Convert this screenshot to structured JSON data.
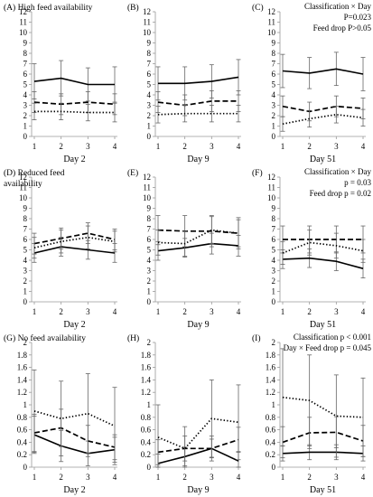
{
  "panels": [
    {
      "label": "(A) High feed availability",
      "xlabel": "Day 2",
      "notes": [],
      "chart_data": {
        "type": "line",
        "x": [
          1,
          2,
          3,
          4
        ],
        "ylim": [
          0,
          12
        ],
        "yticks": [
          0,
          1,
          2,
          3,
          4,
          5,
          6,
          7,
          8,
          9,
          10,
          11,
          12
        ],
        "series": [
          {
            "style": "solid",
            "values": [
              5.3,
              5.6,
              5.0,
              5.0
            ],
            "errors": [
              1.7,
              1.7,
              1.6,
              1.7
            ]
          },
          {
            "style": "dashed",
            "values": [
              3.3,
              3.1,
              3.3,
              3.1
            ],
            "errors": [
              1.0,
              1.0,
              1.0,
              1.0
            ]
          },
          {
            "style": "dotted",
            "values": [
              2.4,
              2.4,
              2.3,
              2.3
            ],
            "errors": [
              0.8,
              0.8,
              0.8,
              0.9
            ]
          }
        ]
      }
    },
    {
      "label": "(B)",
      "xlabel": "Day 9",
      "notes": [],
      "chart_data": {
        "type": "line",
        "x": [
          1,
          2,
          3,
          4
        ],
        "ylim": [
          0,
          12
        ],
        "yticks": [
          0,
          1,
          2,
          3,
          4,
          5,
          6,
          7,
          8,
          9,
          10,
          11,
          12
        ],
        "series": [
          {
            "style": "solid",
            "values": [
              5.1,
              5.1,
              5.3,
              5.7
            ],
            "errors": [
              1.6,
              1.6,
              1.6,
              1.7
            ]
          },
          {
            "style": "dashed",
            "values": [
              3.3,
              3.0,
              3.4,
              3.4
            ],
            "errors": [
              1.0,
              1.0,
              1.0,
              1.0
            ]
          },
          {
            "style": "dotted",
            "values": [
              2.1,
              2.2,
              2.2,
              2.2
            ],
            "errors": [
              0.8,
              0.8,
              0.8,
              0.8
            ]
          }
        ]
      }
    },
    {
      "label": "(C)",
      "xlabel": "Day 51",
      "notes": [
        "Classification × Day",
        "P=0.023",
        "Feed drop P>0.05"
      ],
      "chart_data": {
        "type": "line",
        "x": [
          1,
          2,
          3,
          4
        ],
        "ylim": [
          0,
          12
        ],
        "yticks": [
          0,
          1,
          2,
          3,
          4,
          5,
          6,
          7,
          8,
          9,
          10,
          11,
          12
        ],
        "series": [
          {
            "style": "solid",
            "values": [
              6.3,
              6.1,
              6.5,
              6.0
            ],
            "errors": [
              1.6,
              1.5,
              1.6,
              1.6
            ]
          },
          {
            "style": "dashed",
            "values": [
              2.9,
              2.4,
              2.9,
              2.7
            ],
            "errors": [
              1.0,
              0.9,
              1.0,
              1.0
            ]
          },
          {
            "style": "dotted",
            "values": [
              1.2,
              1.7,
              2.1,
              1.8
            ],
            "errors": [
              0.7,
              0.8,
              0.8,
              0.8
            ]
          }
        ]
      }
    },
    {
      "label": "(D) Reduced feed",
      "label2": "availability",
      "xlabel": "Day 2",
      "notes": [],
      "chart_data": {
        "type": "line",
        "x": [
          1,
          2,
          3,
          4
        ],
        "ylim": [
          0,
          12
        ],
        "yticks": [
          0,
          1,
          2,
          3,
          4,
          5,
          6,
          7,
          8,
          9,
          10,
          11,
          12
        ],
        "series": [
          {
            "style": "solid",
            "values": [
              4.7,
              5.3,
              5.0,
              4.7
            ],
            "errors": [
              0.9,
              0.9,
              0.9,
              0.9
            ]
          },
          {
            "style": "dashed",
            "values": [
              5.6,
              6.1,
              6.6,
              6.0
            ],
            "errors": [
              1.0,
              1.0,
              1.0,
              1.0
            ]
          },
          {
            "style": "dotted",
            "values": [
              5.2,
              5.8,
              6.2,
              5.8
            ],
            "errors": [
              1.0,
              1.1,
              1.1,
              1.0
            ]
          }
        ]
      }
    },
    {
      "label": "(E)",
      "xlabel": "Day 9",
      "notes": [],
      "chart_data": {
        "type": "line",
        "x": [
          1,
          2,
          3,
          4
        ],
        "ylim": [
          0,
          12
        ],
        "yticks": [
          0,
          1,
          2,
          3,
          4,
          5,
          6,
          7,
          8,
          9,
          10,
          11,
          12
        ],
        "series": [
          {
            "style": "solid",
            "values": [
              4.9,
              5.2,
              5.6,
              5.4
            ],
            "errors": [
              0.9,
              0.9,
              1.0,
              1.0
            ]
          },
          {
            "style": "dashed",
            "values": [
              6.9,
              6.8,
              6.8,
              6.6
            ],
            "errors": [
              1.4,
              1.5,
              1.5,
              1.5
            ]
          },
          {
            "style": "dotted",
            "values": [
              5.7,
              5.6,
              6.9,
              6.6
            ],
            "errors": [
              1.2,
              1.2,
              1.3,
              1.3
            ]
          }
        ]
      }
    },
    {
      "label": "(F)",
      "xlabel": "Day 51",
      "notes": [
        "Classification × Day",
        "p = 0.03",
        "Feed drop p = 0.02"
      ],
      "chart_data": {
        "type": "line",
        "x": [
          1,
          2,
          3,
          4
        ],
        "ylim": [
          0,
          12
        ],
        "yticks": [
          0,
          1,
          2,
          3,
          4,
          5,
          6,
          7,
          8,
          9,
          10,
          11,
          12
        ],
        "series": [
          {
            "style": "solid",
            "values": [
              4.1,
              4.2,
              3.9,
              3.2
            ],
            "errors": [
              0.9,
              0.9,
              0.9,
              0.9
            ]
          },
          {
            "style": "dashed",
            "values": [
              6.0,
              6.0,
              6.0,
              6.0
            ],
            "errors": [
              1.3,
              1.3,
              1.3,
              1.3
            ]
          },
          {
            "style": "dotted",
            "values": [
              4.7,
              5.7,
              5.4,
              4.9
            ],
            "errors": [
              1.1,
              1.2,
              1.2,
              1.1
            ]
          }
        ]
      }
    },
    {
      "label": "(G) No feed availability",
      "xlabel": "Day 2",
      "notes": [],
      "chart_data": {
        "type": "line",
        "x": [
          1,
          2,
          3,
          4
        ],
        "ylim": [
          0,
          2
        ],
        "yticks": [
          0,
          0.2,
          0.4,
          0.6,
          0.8,
          1,
          1.2,
          1.4,
          1.6,
          1.8,
          2
        ],
        "series": [
          {
            "style": "solid",
            "values": [
              0.52,
              0.34,
              0.22,
              0.28
            ],
            "errors": [
              0.3,
              0.25,
              0.2,
              0.2
            ]
          },
          {
            "style": "dashed",
            "values": [
              0.55,
              0.63,
              0.42,
              0.32
            ],
            "errors": [
              0.3,
              0.3,
              0.25,
              0.2
            ]
          },
          {
            "style": "dotted",
            "values": [
              0.9,
              0.78,
              0.86,
              0.66
            ],
            "errors": [
              0.66,
              0.6,
              0.64,
              0.62
            ]
          }
        ]
      }
    },
    {
      "label": "(H)",
      "xlabel": "Day 9",
      "notes": [],
      "chart_data": {
        "type": "line",
        "x": [
          1,
          2,
          3,
          4
        ],
        "ylim": [
          0,
          2
        ],
        "yticks": [
          0,
          0.2,
          0.4,
          0.6,
          0.8,
          1,
          1.2,
          1.4,
          1.6,
          1.8,
          2
        ],
        "series": [
          {
            "style": "solid",
            "values": [
              0.06,
              0.17,
              0.3,
              0.1
            ],
            "errors": [
              0.15,
              0.15,
              0.15,
              0.15
            ]
          },
          {
            "style": "dashed",
            "values": [
              0.24,
              0.3,
              0.3,
              0.44
            ],
            "errors": [
              0.2,
              0.2,
              0.2,
              0.2
            ]
          },
          {
            "style": "dotted",
            "values": [
              0.48,
              0.3,
              0.78,
              0.72
            ],
            "errors": [
              0.52,
              0.35,
              0.62,
              0.6
            ]
          }
        ]
      }
    },
    {
      "label": "(I)",
      "xlabel": "Day 51",
      "notes": [
        "Classification p < 0.001",
        "Day × Feed drop p = 0.045"
      ],
      "chart_data": {
        "type": "line",
        "x": [
          1,
          2,
          3,
          4
        ],
        "ylim": [
          0,
          2
        ],
        "yticks": [
          0,
          0.2,
          0.4,
          0.6,
          0.8,
          1,
          1.2,
          1.4,
          1.6,
          1.8,
          2
        ],
        "series": [
          {
            "style": "solid",
            "values": [
              0.22,
              0.24,
              0.24,
              0.22
            ],
            "errors": [
              0.12,
              0.12,
              0.12,
              0.12
            ]
          },
          {
            "style": "dashed",
            "values": [
              0.4,
              0.55,
              0.56,
              0.42
            ],
            "errors": [
              0.25,
              0.25,
              0.25,
              0.25
            ]
          },
          {
            "style": "dotted",
            "values": [
              1.12,
              1.07,
              0.82,
              0.8
            ],
            "errors": [
              0.78,
              0.73,
              0.66,
              0.63
            ]
          }
        ]
      }
    }
  ]
}
